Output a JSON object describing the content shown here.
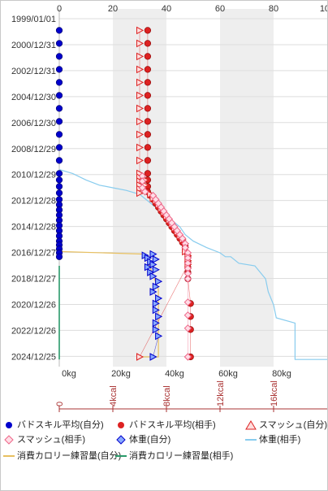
{
  "colors": {
    "grid_band": "#eeeeee",
    "grid_line": "#dddddd",
    "blue": "#0000cc",
    "red": "#dd2222",
    "pink": "#ee6688",
    "sky": "#88ccee",
    "gold": "#e8c060",
    "teal": "#2a9a6a",
    "calorie_axis": "#aa3333"
  },
  "chart_data": {
    "type": "scatter",
    "x_top_ticks": [
      "0",
      "20",
      "40",
      "60",
      "80",
      "100"
    ],
    "x_bottom_ticks": [
      "0kg",
      "20kg",
      "40kg",
      "60kg",
      "80kg"
    ],
    "calorie_ticks": [
      "0",
      "4kcal",
      "8kcal",
      "12kcal",
      "16kcal"
    ],
    "y_ticks": [
      "1999/01/01",
      "2000/12/31",
      "2002/12/31",
      "2004/12/30",
      "2006/12/30",
      "2008/12/29",
      "2010/12/29",
      "2012/12/28",
      "2014/12/28",
      "2016/12/27",
      "2018/12/27",
      "2020/12/26",
      "2022/12/26",
      "2024/12/25"
    ],
    "grid": true,
    "legend": [
      {
        "label": "バドスキル平均(自分)",
        "symbol": "blue-dot"
      },
      {
        "label": "バドスキル平均(相手)",
        "symbol": "red-dot"
      },
      {
        "label": "スマッシュ(自分)",
        "symbol": "red-triangle"
      },
      {
        "label": "スマッシュ(相手)",
        "symbol": "pink-diamond"
      },
      {
        "label": "体重(自分)",
        "symbol": "blue-diamond"
      },
      {
        "label": "体重(相手)",
        "symbol": "sky-line"
      },
      {
        "label": "消費カロリー練習量(自分)",
        "symbol": "gold-line"
      },
      {
        "label": "消費カロリー練習量(相手)",
        "symbol": "teal-line"
      }
    ],
    "series": [
      {
        "name": "バドスキル平均(自分)",
        "points": [
          [
            0,
            1999.9
          ],
          [
            0,
            2000.9
          ],
          [
            0,
            2001.9
          ],
          [
            0,
            2002.9
          ],
          [
            0,
            2003.9
          ],
          [
            0,
            2004.9
          ],
          [
            0,
            2005.9
          ],
          [
            0,
            2006.9
          ],
          [
            0,
            2007.9
          ],
          [
            0,
            2008.9
          ],
          [
            0,
            2009.9
          ],
          [
            0,
            2010.9
          ],
          [
            0,
            2011.4
          ],
          [
            0,
            2011.9
          ],
          [
            0,
            2012.4
          ],
          [
            0,
            2012.9
          ],
          [
            0,
            2013.3
          ],
          [
            0,
            2013.7
          ],
          [
            0,
            2014.1
          ],
          [
            0,
            2014.5
          ],
          [
            0,
            2014.9
          ],
          [
            0,
            2015.3
          ],
          [
            0,
            2015.7
          ],
          [
            0,
            2016.1
          ],
          [
            0,
            2016.4
          ],
          [
            0,
            2016.7
          ],
          [
            0,
            2017.0
          ],
          [
            0,
            2017.3
          ]
        ]
      },
      {
        "name": "バドスキル平均(相手)",
        "points": [
          [
            33,
            1999.9
          ],
          [
            33,
            2000.9
          ],
          [
            33,
            2001.9
          ],
          [
            33,
            2002.9
          ],
          [
            33,
            2003.9
          ],
          [
            33,
            2004.9
          ],
          [
            33,
            2005.9
          ],
          [
            33,
            2006.9
          ],
          [
            33,
            2007.9
          ],
          [
            33,
            2008.9
          ],
          [
            33,
            2009.9
          ],
          [
            33,
            2010.9
          ],
          [
            33,
            2011.4
          ],
          [
            33,
            2011.9
          ],
          [
            33,
            2012.3
          ],
          [
            34,
            2012.6
          ],
          [
            35,
            2012.9
          ],
          [
            36,
            2013.2
          ],
          [
            37,
            2013.5
          ],
          [
            38,
            2013.8
          ],
          [
            39,
            2014.1
          ],
          [
            40,
            2014.4
          ],
          [
            41,
            2014.7
          ],
          [
            42,
            2015.0
          ],
          [
            43,
            2015.3
          ],
          [
            44,
            2015.6
          ],
          [
            45,
            2015.9
          ],
          [
            46,
            2016.2
          ],
          [
            47,
            2016.5
          ],
          [
            47,
            2016.9
          ],
          [
            48,
            2017.3
          ],
          [
            48,
            2017.7
          ],
          [
            48,
            2018.1
          ],
          [
            48,
            2018.5
          ],
          [
            48,
            2019.0
          ],
          [
            49,
            2020.9
          ],
          [
            49,
            2021.9
          ],
          [
            49,
            2022.9
          ],
          [
            49,
            2025.0
          ]
        ]
      },
      {
        "name": "スマッシュ(自分)",
        "points": [
          [
            30,
            1999.9
          ],
          [
            30,
            2000.9
          ],
          [
            30,
            2001.9
          ],
          [
            30,
            2002.9
          ],
          [
            30,
            2003.9
          ],
          [
            30,
            2004.9
          ],
          [
            30,
            2005.9
          ],
          [
            30,
            2006.9
          ],
          [
            30,
            2007.9
          ],
          [
            30,
            2008.9
          ],
          [
            30,
            2009.9
          ],
          [
            30,
            2010.9
          ],
          [
            30,
            2011.2
          ],
          [
            30,
            2011.5
          ],
          [
            30,
            2011.8
          ],
          [
            30,
            2012.1
          ],
          [
            30,
            2012.4
          ],
          [
            32,
            2011.4
          ],
          [
            32,
            2011.8
          ],
          [
            32,
            2012.2
          ],
          [
            34,
            2012.5
          ],
          [
            35,
            2012.8
          ],
          [
            36,
            2013.0
          ],
          [
            37,
            2013.3
          ],
          [
            38,
            2013.6
          ],
          [
            39,
            2013.9
          ],
          [
            40,
            2014.2
          ],
          [
            41,
            2014.5
          ],
          [
            42,
            2014.8
          ],
          [
            43,
            2015.1
          ],
          [
            44,
            2015.4
          ],
          [
            45,
            2015.7
          ],
          [
            46,
            2016.0
          ],
          [
            47,
            2016.3
          ],
          [
            47,
            2016.6
          ],
          [
            47,
            2016.9
          ],
          [
            48,
            2017.2
          ],
          [
            48,
            2017.6
          ],
          [
            48,
            2017.9
          ],
          [
            30,
            2025.0
          ]
        ]
      },
      {
        "name": "スマッシュ(相手)",
        "points": [
          [
            31,
            2011.1
          ],
          [
            31,
            2011.5
          ],
          [
            31,
            2012.0
          ],
          [
            32,
            2012.3
          ],
          [
            35,
            2012.6
          ],
          [
            36,
            2012.9
          ],
          [
            37,
            2013.2
          ],
          [
            38,
            2013.5
          ],
          [
            39,
            2013.8
          ],
          [
            40,
            2014.1
          ],
          [
            41,
            2014.4
          ],
          [
            42,
            2014.7
          ],
          [
            43,
            2015.0
          ],
          [
            44,
            2015.3
          ],
          [
            45,
            2015.6
          ],
          [
            46,
            2015.9
          ],
          [
            47,
            2016.3
          ],
          [
            47,
            2016.6
          ],
          [
            48,
            2017.0
          ],
          [
            48,
            2017.4
          ],
          [
            48,
            2017.8
          ],
          [
            48,
            2018.2
          ],
          [
            48,
            2018.6
          ],
          [
            48,
            2019.0
          ],
          [
            48,
            2020.8
          ],
          [
            48,
            2021.8
          ],
          [
            48,
            2022.8
          ],
          [
            48,
            2025.0
          ]
        ]
      },
      {
        "name": "体重(自分)",
        "points": [
          [
            32,
            2017.2
          ],
          [
            33,
            2017.4
          ],
          [
            35,
            2017.1
          ],
          [
            36,
            2017.5
          ],
          [
            34,
            2017.7
          ],
          [
            35,
            2017.9
          ],
          [
            33,
            2018.1
          ],
          [
            36,
            2018.3
          ],
          [
            34,
            2018.5
          ],
          [
            35,
            2018.8
          ],
          [
            37,
            2019.2
          ],
          [
            36,
            2019.6
          ],
          [
            35,
            2020.0
          ],
          [
            37,
            2020.5
          ],
          [
            36,
            2020.9
          ],
          [
            36,
            2021.4
          ],
          [
            37,
            2021.9
          ],
          [
            36,
            2022.4
          ],
          [
            36,
            2022.9
          ],
          [
            37,
            2023.4
          ],
          [
            35,
            2025.0
          ]
        ]
      }
    ],
    "lines": [
      {
        "name": "体重(相手)",
        "points": [
          [
            0,
            2010.6
          ],
          [
            5,
            2010.9
          ],
          [
            10,
            2011.4
          ],
          [
            15,
            2011.8
          ],
          [
            20,
            2012.0
          ],
          [
            25,
            2012.2
          ],
          [
            30,
            2012.5
          ],
          [
            33,
            2013.0
          ],
          [
            36,
            2013.5
          ],
          [
            39,
            2014.0
          ],
          [
            42,
            2014.5
          ],
          [
            45,
            2015.0
          ],
          [
            47,
            2015.6
          ],
          [
            50,
            2016.1
          ],
          [
            55,
            2016.6
          ],
          [
            60,
            2017.0
          ],
          [
            62,
            2017.3
          ],
          [
            64,
            2017.3
          ],
          [
            67,
            2017.8
          ],
          [
            73,
            2018.0
          ],
          [
            77,
            2019.0
          ],
          [
            78,
            2020.0
          ],
          [
            80,
            2021.0
          ],
          [
            81,
            2022.0
          ],
          [
            88,
            2022.4
          ],
          [
            88,
            2025.2
          ],
          [
            100,
            2025.2
          ]
        ]
      },
      {
        "name": "消費カロリー練習量(自分)",
        "points": [
          [
            0,
            2016.9
          ],
          [
            32,
            2017.1
          ],
          [
            37,
            2019.8
          ],
          [
            37,
            2025.0
          ],
          [
            31,
            2025.0
          ]
        ]
      },
      {
        "name": "消費カロリー練習量(相手)",
        "points": [
          [
            0,
            2018.0
          ],
          [
            0,
            2025.2
          ]
        ]
      }
    ]
  }
}
